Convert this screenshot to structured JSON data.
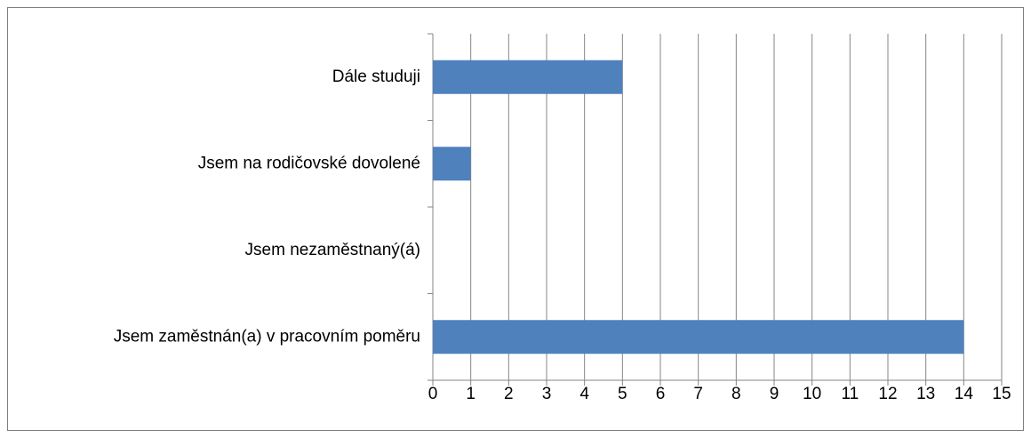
{
  "chart_data": {
    "type": "bar",
    "orientation": "horizontal",
    "categories": [
      "Dále studuji",
      "Jsem na rodičovské dovolené",
      "Jsem nezaměstnaný(á)",
      "Jsem zaměstnán(a) v pracovním poměru"
    ],
    "values": [
      5,
      1,
      0,
      14
    ],
    "color": "#4f81bd",
    "xlim": [
      0,
      15
    ],
    "xticks": [
      0,
      1,
      2,
      3,
      4,
      5,
      6,
      7,
      8,
      9,
      10,
      11,
      12,
      13,
      14,
      15
    ],
    "grid": true
  }
}
